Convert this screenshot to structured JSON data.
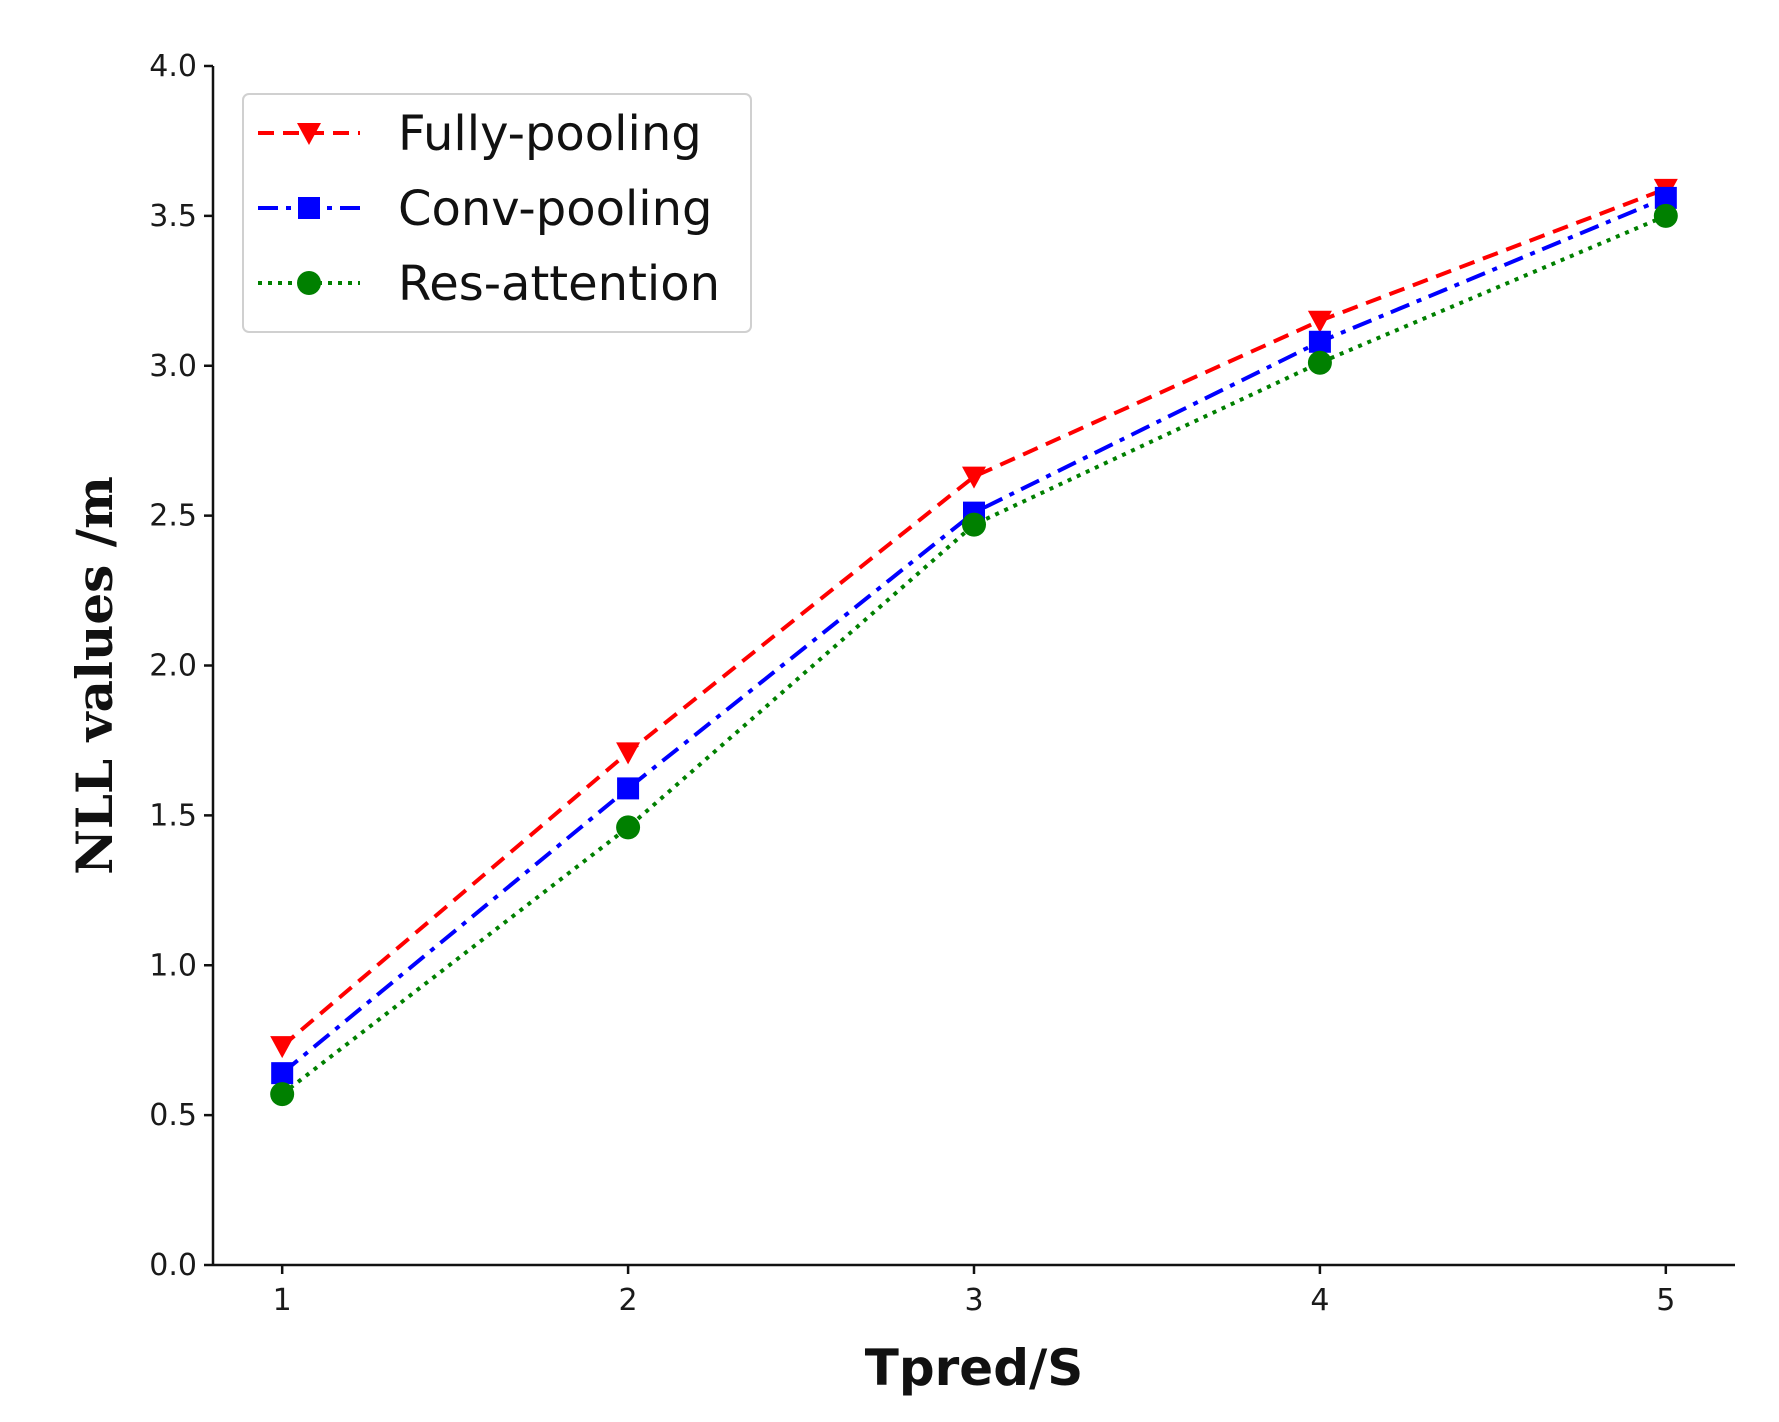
{
  "chart_data": {
    "type": "line",
    "title": "",
    "xlabel": "Tpred/S",
    "ylabel": "NLL values /m",
    "x": [
      1,
      2,
      3,
      4,
      5
    ],
    "xticks": [
      "1",
      "2",
      "3",
      "4",
      "5"
    ],
    "yticks": [
      "0.0",
      "0.5",
      "1.0",
      "1.5",
      "2.0",
      "2.5",
      "3.0",
      "3.5",
      "4.0"
    ],
    "ylim": [
      0,
      4
    ],
    "xlim": [
      0.8,
      5.2
    ],
    "grid": false,
    "legend_position": "top-left",
    "series": [
      {
        "name": "Fully-pooling",
        "values": [
          0.73,
          1.71,
          2.63,
          3.15,
          3.59
        ],
        "color": "#ff0000",
        "marker": "triangle-down",
        "linestyle": "dashed"
      },
      {
        "name": "Conv-pooling",
        "values": [
          0.64,
          1.59,
          2.51,
          3.08,
          3.56
        ],
        "color": "#0000ff",
        "marker": "square",
        "linestyle": "dashdot"
      },
      {
        "name": "Res-attention",
        "values": [
          0.57,
          1.46,
          2.47,
          3.01,
          3.5
        ],
        "color": "#008000",
        "marker": "circle",
        "linestyle": "dotted"
      }
    ]
  }
}
